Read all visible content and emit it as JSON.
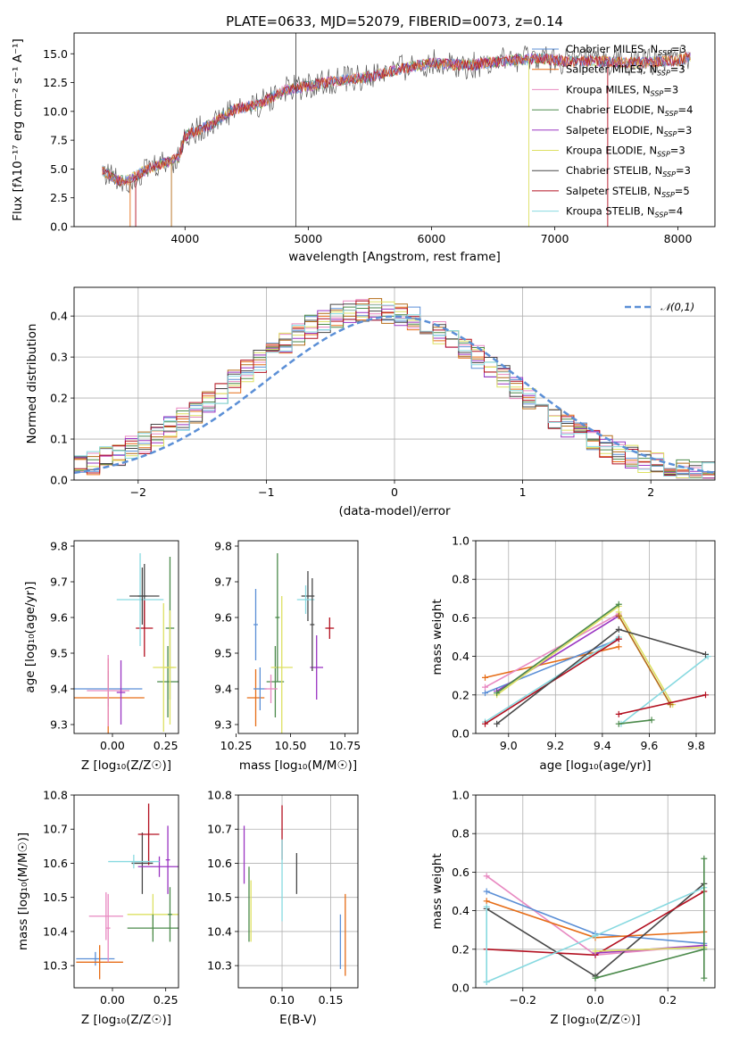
{
  "title": "PLATE=0633, MJD=52079, FIBERID=0073, z=0.14",
  "colors": [
    "#5b8fd6",
    "#e66d17",
    "#e889c1",
    "#b46c18",
    "#4b8a4b",
    "#9a35c2",
    "#dde062",
    "#484848",
    "#b31020",
    "#87d9e0"
  ],
  "chart_data": [
    {
      "id": "spectrum",
      "type": "line",
      "xlabel": "wavelength [Angstrom, rest frame]",
      "ylabel": "Flux [fλ10⁻¹⁷ erg cm⁻² s⁻¹ A⁻¹]",
      "xlim": [
        3100,
        8300
      ],
      "ylim": [
        0,
        16.8
      ],
      "xticks": [
        4000,
        5000,
        6000,
        7000,
        8000
      ],
      "yticks": [
        0.0,
        2.5,
        5.0,
        7.5,
        10.0,
        12.5,
        15.0
      ],
      "continuum": {
        "x": [
          3330,
          3450,
          3550,
          3700,
          3850,
          3950,
          4000,
          4200,
          4400,
          4600,
          4800,
          5000,
          5200,
          5500,
          5800,
          6000,
          6300,
          6600,
          6900,
          7100,
          7300,
          7600,
          8000,
          8100
        ],
        "y": [
          4.9,
          4.0,
          4.1,
          5.0,
          5.6,
          6.0,
          7.9,
          8.8,
          10.2,
          10.6,
          11.8,
          12.2,
          12.6,
          13.0,
          13.8,
          14.2,
          14.0,
          14.4,
          14.6,
          14.3,
          14.4,
          14.2,
          14.4,
          14.8
        ]
      },
      "series": [
        {
          "name": "Chabrier MILES, N_SSP=3"
        },
        {
          "name": "Salpeter MILES, N_SSP=3"
        },
        {
          "name": "Kroupa MILES, N_SSP=3"
        },
        {
          "name": "Chabrier ELODIE, N_SSP=4"
        },
        {
          "name": "Salpeter ELODIE, N_SSP=3"
        },
        {
          "name": "Kroupa ELODIE, N_SSP=3"
        },
        {
          "name": "Chabrier STELIB, N_SSP=3"
        },
        {
          "name": "Salpeter STELIB, N_SSP=5"
        },
        {
          "name": "Kroupa STELIB, N_SSP=4"
        }
      ],
      "legend": "top-right"
    },
    {
      "id": "residuals",
      "type": "line",
      "xlabel": "(data-model)/error",
      "ylabel": "Normed distribution",
      "xlim": [
        -2.5,
        2.5
      ],
      "ylim": [
        0,
        0.47
      ],
      "xticks": [
        -2,
        -1,
        0,
        1,
        2
      ],
      "yticks": [
        0.0,
        0.1,
        0.2,
        0.3,
        0.4
      ],
      "grid": true,
      "reference": {
        "name": "𝒩(0,1)",
        "type": "gaussian",
        "mean": 0,
        "sigma": 1
      },
      "legend": "top-right"
    },
    {
      "id": "age_vs_Z",
      "type": "scatter",
      "xlabel": "Z [log₁₀(Z/Z☉)]",
      "ylabel": "age  [log₁₀(age/yr)]",
      "xlim": [
        -0.18,
        0.31
      ],
      "ylim": [
        9.275,
        9.815
      ],
      "xticks": [
        0.0,
        0.25
      ],
      "yticks": [
        9.3,
        9.4,
        9.5,
        9.6,
        9.7,
        9.8
      ],
      "points": [
        {
          "x": -0.02,
          "xerr": 0.16,
          "y": 9.4,
          "yerr": 0.05,
          "c": 0
        },
        {
          "x": -0.02,
          "xerr": 0.17,
          "y": 9.375,
          "yerr": 0.11,
          "c": 1
        },
        {
          "x": -0.02,
          "xerr": 0.1,
          "y": 9.395,
          "yerr": 0.1,
          "c": 2
        },
        {
          "x": 0.26,
          "xerr": 0.05,
          "y": 9.42,
          "yerr": 0.1,
          "c": 4
        },
        {
          "x": 0.24,
          "xerr": 0.05,
          "y": 9.46,
          "yerr": 0.18,
          "c": 6
        },
        {
          "x": 0.15,
          "xerr": 0.07,
          "y": 9.66,
          "yerr": 0.09,
          "c": 7
        },
        {
          "x": 0.15,
          "xerr": 0.04,
          "y": 9.57,
          "yerr": 0.08,
          "c": 8
        },
        {
          "x": 0.13,
          "xerr": 0.11,
          "y": 9.65,
          "yerr": 0.13,
          "c": 9
        },
        {
          "x": 0.04,
          "xerr": 0.02,
          "y": 9.39,
          "yerr": 0.09,
          "c": 5
        },
        {
          "x": 0.27,
          "xerr": 0.02,
          "y": 9.57,
          "yerr": 0.2,
          "c": 4
        },
        {
          "x": 0.14,
          "xerr": 0.02,
          "y": 9.66,
          "yerr": 0.08,
          "c": 7
        },
        {
          "x": 0.27,
          "xerr": 0.03,
          "y": 9.46,
          "yerr": 0.16,
          "c": 6
        }
      ]
    },
    {
      "id": "age_vs_mass",
      "type": "scatter",
      "xlabel": "mass [log₁₀(M/M☉)]",
      "ylabel": "",
      "xlim": [
        10.26,
        10.81
      ],
      "ylim": [
        9.275,
        9.815
      ],
      "xticks": [
        10.25,
        10.5,
        10.75
      ],
      "yticks": [
        9.3,
        9.4,
        9.5,
        9.6,
        9.7,
        9.8
      ],
      "points": [
        {
          "x": 10.34,
          "xerr": 0.04,
          "y": 9.375,
          "yerr": 0.08,
          "c": 1
        },
        {
          "x": 10.36,
          "xerr": 0.03,
          "y": 9.4,
          "yerr": 0.06,
          "c": 0
        },
        {
          "x": 10.43,
          "xerr": 0.04,
          "y": 9.42,
          "yerr": 0.1,
          "c": 4
        },
        {
          "x": 10.46,
          "xerr": 0.05,
          "y": 9.46,
          "yerr": 0.2,
          "c": 6
        },
        {
          "x": 10.41,
          "xerr": 0.03,
          "y": 9.4,
          "yerr": 0.04,
          "c": 2
        },
        {
          "x": 10.58,
          "xerr": 0.03,
          "y": 9.66,
          "yerr": 0.07,
          "c": 7
        },
        {
          "x": 10.62,
          "xerr": 0.03,
          "y": 9.46,
          "yerr": 0.09,
          "c": 5
        },
        {
          "x": 10.68,
          "xerr": 0.02,
          "y": 9.57,
          "yerr": 0.03,
          "c": 8
        },
        {
          "x": 10.57,
          "xerr": 0.04,
          "y": 9.65,
          "yerr": 0.04,
          "c": 9
        },
        {
          "x": 10.44,
          "xerr": 0.01,
          "y": 9.6,
          "yerr": 0.18,
          "c": 4
        },
        {
          "x": 10.34,
          "xerr": 0.01,
          "y": 9.58,
          "yerr": 0.1,
          "c": 0
        },
        {
          "x": 10.6,
          "xerr": 0.01,
          "y": 9.58,
          "yerr": 0.13,
          "c": 7
        }
      ]
    },
    {
      "id": "weight_vs_age",
      "type": "line",
      "xlabel": "age  [log₁₀(age/yr)]",
      "ylabel": "mass weight",
      "xlim": [
        8.86,
        9.88
      ],
      "ylim": [
        0,
        1
      ],
      "xticks": [
        9.0,
        9.2,
        9.4,
        9.6,
        9.8
      ],
      "yticks": [
        0.0,
        0.2,
        0.4,
        0.6,
        0.8,
        1.0
      ],
      "grid": true,
      "lines": [
        {
          "x": [
            8.9,
            9.47
          ],
          "y": [
            0.29,
            0.45
          ],
          "c": 1
        },
        {
          "x": [
            8.9,
            9.47
          ],
          "y": [
            0.21,
            0.49
          ],
          "c": 0
        },
        {
          "x": [
            8.9,
            9.47
          ],
          "y": [
            0.24,
            0.62
          ],
          "c": 2
        },
        {
          "x": [
            8.95,
            9.47
          ],
          "y": [
            0.22,
            0.61
          ],
          "c": 5
        },
        {
          "x": [
            8.95,
            9.47
          ],
          "y": [
            0.2,
            0.66
          ],
          "c": 6
        },
        {
          "x": [
            8.95,
            9.47
          ],
          "y": [
            0.21,
            0.67
          ],
          "c": 4
        },
        {
          "x": [
            9.47,
            9.7
          ],
          "y": [
            0.63,
            0.15
          ],
          "c": 6
        },
        {
          "x": [
            9.47,
            9.69
          ],
          "y": [
            0.61,
            0.15
          ],
          "c": 3
        },
        {
          "x": [
            8.9,
            9.47
          ],
          "y": [
            0.06,
            0.5
          ],
          "c": 9
        },
        {
          "x": [
            9.48,
            9.85
          ],
          "y": [
            0.05,
            0.4
          ],
          "c": 9
        },
        {
          "x": [
            8.9,
            9.47
          ],
          "y": [
            0.05,
            0.49
          ],
          "c": 8
        },
        {
          "x": [
            9.47,
            9.84
          ],
          "y": [
            0.1,
            0.2
          ],
          "c": 8
        },
        {
          "x": [
            8.95,
            9.47,
            9.84
          ],
          "y": [
            0.05,
            0.54,
            0.41
          ],
          "c": 7
        },
        {
          "x": [
            9.47,
            9.61
          ],
          "y": [
            0.05,
            0.07
          ],
          "c": 4
        }
      ]
    },
    {
      "id": "mass_vs_Z",
      "type": "scatter",
      "xlabel": "Z [log₁₀(Z/Z☉)]",
      "ylabel": "mass [log₁₀(M/M☉)]",
      "xlim": [
        -0.18,
        0.31
      ],
      "ylim": [
        10.235,
        10.8
      ],
      "xticks": [
        0.0,
        0.25
      ],
      "yticks": [
        10.3,
        10.4,
        10.5,
        10.6,
        10.7,
        10.8
      ],
      "points": [
        {
          "x": -0.08,
          "xerr": 0.09,
          "y": 10.32,
          "yerr": 0.02,
          "c": 0
        },
        {
          "x": -0.06,
          "xerr": 0.11,
          "y": 10.31,
          "yerr": 0.05,
          "c": 1
        },
        {
          "x": -0.03,
          "xerr": 0.08,
          "y": 10.445,
          "yerr": 0.07,
          "c": 2
        },
        {
          "x": 0.19,
          "xerr": 0.12,
          "y": 10.45,
          "yerr": 0.06,
          "c": 6
        },
        {
          "x": 0.19,
          "xerr": 0.12,
          "y": 10.41,
          "yerr": 0.04,
          "c": 4
        },
        {
          "x": 0.14,
          "xerr": 0.05,
          "y": 10.6,
          "yerr": 0.09,
          "c": 7
        },
        {
          "x": 0.22,
          "xerr": 0.1,
          "y": 10.59,
          "yerr": 0.03,
          "c": 5
        },
        {
          "x": 0.17,
          "xerr": 0.05,
          "y": 10.685,
          "yerr": 0.09,
          "c": 8
        },
        {
          "x": 0.1,
          "xerr": 0.12,
          "y": 10.605,
          "yerr": 0.02,
          "c": 9
        },
        {
          "x": 0.26,
          "xerr": 0.01,
          "y": 10.61,
          "yerr": 0.1,
          "c": 5
        },
        {
          "x": 0.27,
          "xerr": 0.01,
          "y": 10.45,
          "yerr": 0.08,
          "c": 4
        },
        {
          "x": -0.02,
          "xerr": 0.01,
          "y": 10.41,
          "yerr": 0.1,
          "c": 2
        }
      ]
    },
    {
      "id": "mass_vs_EBV",
      "type": "scatter",
      "xlabel": "E(B-V)",
      "ylabel": "",
      "xlim": [
        0.055,
        0.178
      ],
      "ylim": [
        10.235,
        10.8
      ],
      "xticks": [
        0.1,
        0.15
      ],
      "yticks": [
        10.3,
        10.4,
        10.5,
        10.6,
        10.7,
        10.8
      ],
      "grid": true,
      "points": [
        {
          "x": 0.061,
          "y": 10.625,
          "yerr": 0.085,
          "c": 5
        },
        {
          "x": 0.066,
          "y": 10.48,
          "yerr": 0.11,
          "c": 4
        },
        {
          "x": 0.068,
          "y": 10.46,
          "yerr": 0.09,
          "c": 6
        },
        {
          "x": 0.1,
          "y": 10.69,
          "yerr": 0.08,
          "c": 8
        },
        {
          "x": 0.1,
          "y": 10.55,
          "yerr": 0.12,
          "c": 9
        },
        {
          "x": 0.115,
          "y": 10.57,
          "yerr": 0.06,
          "c": 7
        },
        {
          "x": 0.16,
          "y": 10.37,
          "yerr": 0.08,
          "c": 0
        },
        {
          "x": 0.165,
          "y": 10.39,
          "yerr": 0.12,
          "c": 1
        }
      ]
    },
    {
      "id": "weight_vs_Z",
      "type": "line",
      "xlabel": "Z [log₁₀(Z/Z☉)]",
      "ylabel": "mass weight",
      "xlim": [
        -0.33,
        0.33
      ],
      "ylim": [
        0,
        1
      ],
      "xticks": [
        -0.2,
        0.0,
        0.2
      ],
      "yticks": [
        0.0,
        0.2,
        0.4,
        0.6,
        0.8,
        1.0
      ],
      "grid": true,
      "lines": [
        {
          "x": [
            -0.3,
            0.0,
            0.3
          ],
          "y": [
            0.58,
            0.17,
            0.22
          ],
          "c": 2
        },
        {
          "x": [
            -0.3,
            0.0,
            0.3
          ],
          "y": [
            0.5,
            0.28,
            0.23
          ],
          "c": 0
        },
        {
          "x": [
            -0.3,
            0.0,
            0.3
          ],
          "y": [
            0.45,
            0.26,
            0.29
          ],
          "c": 1
        },
        {
          "x": [
            -0.3,
            0.0,
            0.3
          ],
          "y": [
            0.41,
            0.06,
            0.54
          ],
          "c": 7
        },
        {
          "x": [
            -0.3,
            0.0,
            0.3
          ],
          "y": [
            0.2,
            0.17,
            0.5
          ],
          "c": 8
        },
        {
          "x": [
            -0.3,
            0.0,
            0.3
          ],
          "y": [
            0.03,
            0.27,
            0.52
          ],
          "c": 9
        },
        {
          "x": [
            0.0,
            0.3
          ],
          "y": [
            0.18,
            0.22
          ],
          "c": 5
        },
        {
          "x": [
            0.0,
            0.3
          ],
          "y": [
            0.19,
            0.21
          ],
          "c": 6
        },
        {
          "x": [
            0.0,
            0.3
          ],
          "y": [
            0.05,
            0.2
          ],
          "c": 4
        },
        {
          "x": [
            0.3,
            0.3
          ],
          "y": [
            0.05,
            0.67
          ],
          "c": 4
        },
        {
          "x": [
            -0.3,
            -0.3
          ],
          "y": [
            0.03,
            0.42
          ],
          "c": 9
        }
      ]
    }
  ]
}
